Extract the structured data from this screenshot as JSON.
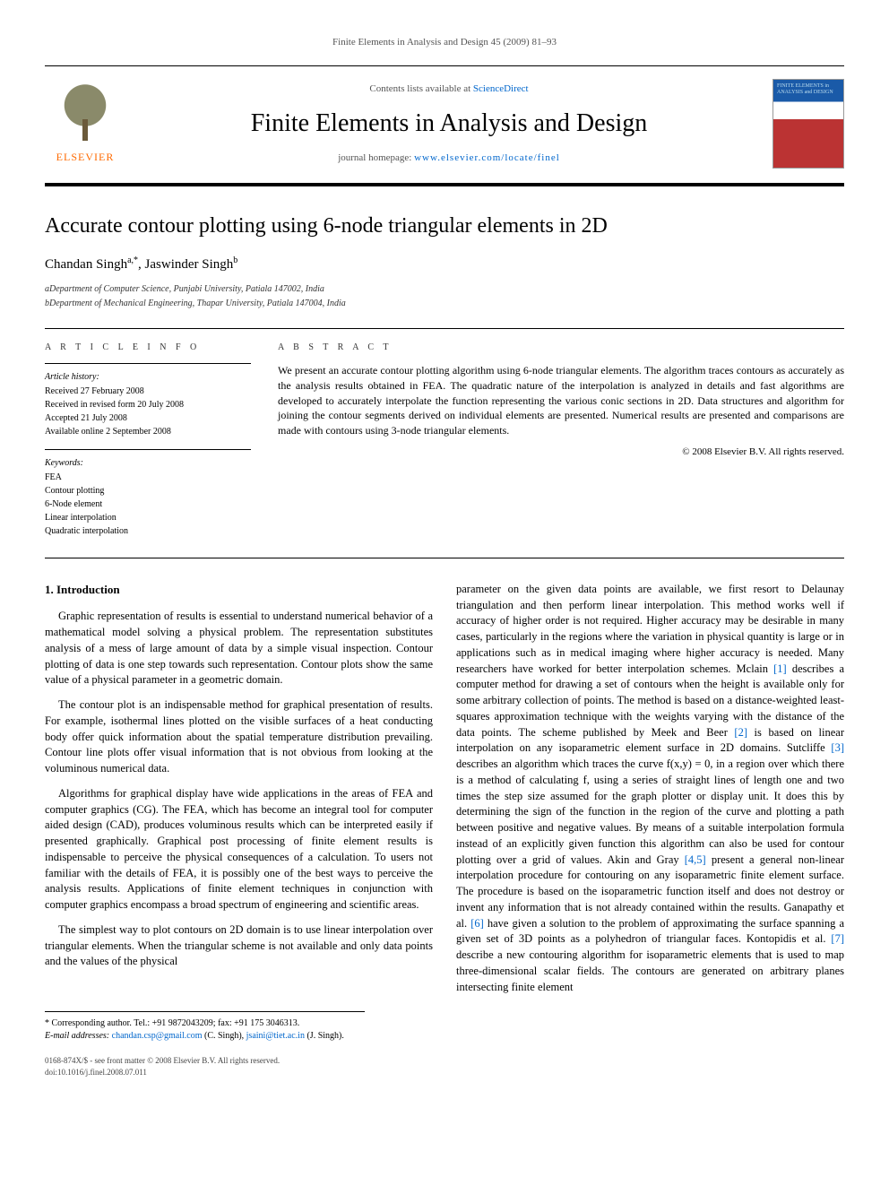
{
  "journal_header": "Finite Elements in Analysis and Design 45 (2009) 81–93",
  "masthead": {
    "contents_prefix": "Contents lists available at ",
    "contents_link": "ScienceDirect",
    "journal_title": "Finite Elements in Analysis and Design",
    "homepage_prefix": "journal homepage: ",
    "homepage_link": "www.elsevier.com/locate/finel",
    "publisher": "ELSEVIER",
    "cover_text": "FINITE ELEMENTS in ANALYSIS and DESIGN"
  },
  "article": {
    "title": "Accurate contour plotting using 6-node triangular elements in 2D",
    "authors_html": "Chandan Singh",
    "author1_sup": "a,*",
    "author_sep": ", ",
    "author2": "Jaswinder Singh",
    "author2_sup": "b",
    "affiliations": {
      "a": "aDepartment of Computer Science, Punjabi University, Patiala 147002, India",
      "b": "bDepartment of Mechanical Engineering, Thapar University, Patiala 147004, India"
    }
  },
  "info": {
    "label": "A R T I C L E   I N F O",
    "history_label": "Article history:",
    "received": "Received 27 February 2008",
    "revised": "Received in revised form 20 July 2008",
    "accepted": "Accepted 21 July 2008",
    "online": "Available online 2 September 2008",
    "keywords_label": "Keywords:",
    "keywords": [
      "FEA",
      "Contour plotting",
      "6-Node element",
      "Linear interpolation",
      "Quadratic interpolation"
    ]
  },
  "abstract": {
    "label": "A B S T R A C T",
    "text": "We present an accurate contour plotting algorithm using 6-node triangular elements. The algorithm traces contours as accurately as the analysis results obtained in FEA. The quadratic nature of the interpolation is analyzed in details and fast algorithms are developed to accurately interpolate the function representing the various conic sections in 2D. Data structures and algorithm for joining the contour segments derived on individual elements are presented. Numerical results are presented and comparisons are made with contours using 3-node triangular elements.",
    "copyright": "© 2008 Elsevier B.V. All rights reserved."
  },
  "body": {
    "h_intro": "1. Introduction",
    "p1": "Graphic representation of results is essential to understand numerical behavior of a mathematical model solving a physical problem. The representation substitutes analysis of a mess of large amount of data by a simple visual inspection. Contour plotting of data is one step towards such representation. Contour plots show the same value of a physical parameter in a geometric domain.",
    "p2": "The contour plot is an indispensable method for graphical presentation of results. For example, isothermal lines plotted on the visible surfaces of a heat conducting body offer quick information about the spatial temperature distribution prevailing. Contour line plots offer visual information that is not obvious from looking at the voluminous numerical data.",
    "p3": "Algorithms for graphical display have wide applications in the areas of FEA and computer graphics (CG). The FEA, which has become an integral tool for computer aided design (CAD), produces voluminous results which can be interpreted easily if presented graphically. Graphical post processing of finite element results is indispensable to perceive the physical consequences of a calculation. To users not familiar with the details of FEA, it is possibly one of the best ways to perceive the analysis results. Applications of finite element techniques in conjunction with computer graphics encompass a broad spectrum of engineering and scientific areas.",
    "p4": "The simplest way to plot contours on 2D domain is to use linear interpolation over triangular elements. When the triangular scheme is not available and only data points and the values of the physical",
    "p5a": "parameter on the given data points are available, we first resort to Delaunay triangulation and then perform linear interpolation. This method works well if accuracy of higher order is not required. Higher accuracy may be desirable in many cases, particularly in the regions where the variation in physical quantity is large or in applications such as in medical imaging where higher accuracy is needed. Many researchers have worked for better interpolation schemes. Mclain ",
    "ref1": "[1]",
    "p5b": " describes a computer method for drawing a set of contours when the height is available only for some arbitrary collection of points. The method is based on a distance-weighted least-squares approximation technique with the weights varying with the distance of the data points. The scheme published by Meek and Beer ",
    "ref2": "[2]",
    "p5c": " is based on linear interpolation on any isoparametric element surface in 2D domains. Sutcliffe ",
    "ref3": "[3]",
    "p5d": " describes an algorithm which traces the curve f(x,y) = 0, in a region over which there is a method of calculating f, using a series of straight lines of length one and two times the step size assumed for the graph plotter or display unit. It does this by determining the sign of the function in the region of the curve and plotting a path between positive and negative values. By means of a suitable interpolation formula instead of an explicitly given function this algorithm can also be used for contour plotting over a grid of values. Akin and Gray ",
    "ref45": "[4,5]",
    "p5e": " present a general non-linear interpolation procedure for contouring on any isoparametric finite element surface. The procedure is based on the isoparametric function itself and does not destroy or invent any information that is not already contained within the results. Ganapathy et al. ",
    "ref6": "[6]",
    "p5f": " have given a solution to the problem of approximating the surface spanning a given set of 3D points as a polyhedron of triangular faces. Kontopidis et al. ",
    "ref7": "[7]",
    "p5g": " describe a new contouring algorithm for isoparametric elements that is used to map three-dimensional scalar fields. The contours are generated on arbitrary planes intersecting finite element"
  },
  "footnotes": {
    "corr": "* Corresponding author. Tel.: +91 9872043209; fax: +91 175 3046313.",
    "email_label": "E-mail addresses: ",
    "email1": "chandan.csp@gmail.com",
    "email1_who": " (C. Singh), ",
    "email2": "jsaini@tiet.ac.in",
    "email2_who": " (J. Singh)."
  },
  "bottom": {
    "line1": "0168-874X/$ - see front matter © 2008 Elsevier B.V. All rights reserved.",
    "line2": "doi:10.1016/j.finel.2008.07.011"
  },
  "colors": {
    "link": "#0066cc",
    "publisher": "#ff6a00"
  }
}
